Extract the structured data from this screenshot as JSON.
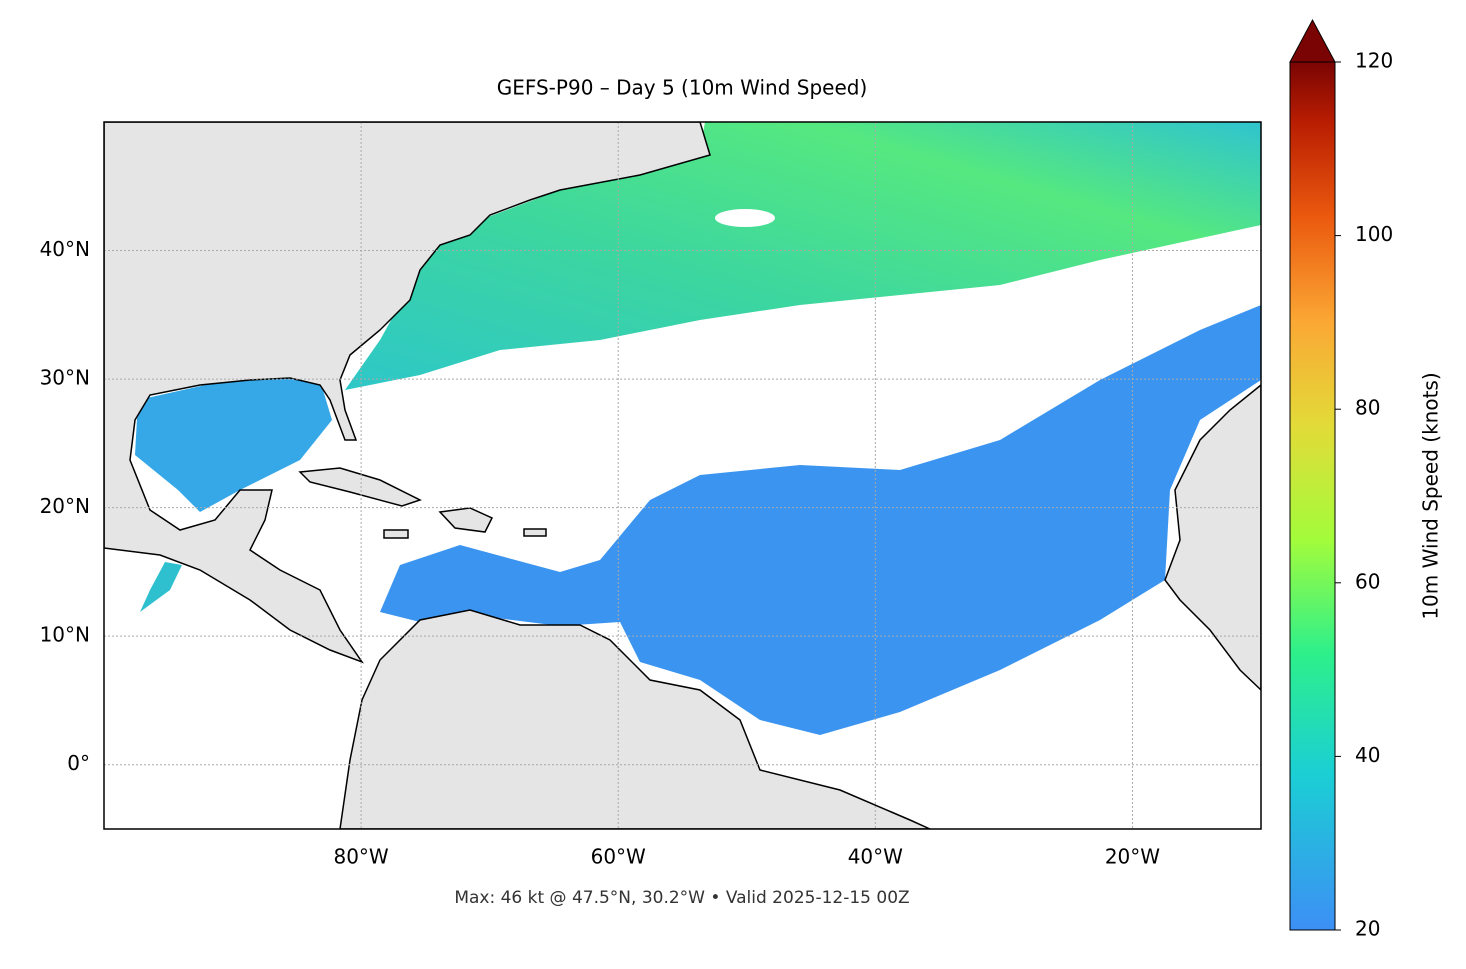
{
  "chart_data": {
    "type": "map",
    "title": "GEFS-P90 – Day 5 (10m Wind Speed)",
    "footer": "Max: 46 kt @ 47.5°N, 30.2°W • Valid 2025-12-15 00Z",
    "xlim": [
      -100,
      -10
    ],
    "ylim": [
      -5,
      50
    ],
    "xticks": [
      {
        "value": -80,
        "label": "80°W"
      },
      {
        "value": -60,
        "label": "60°W"
      },
      {
        "value": -40,
        "label": "40°W"
      },
      {
        "value": -20,
        "label": "20°W"
      }
    ],
    "yticks": [
      {
        "value": 0,
        "label": "0°"
      },
      {
        "value": 10,
        "label": "10°N"
      },
      {
        "value": 20,
        "label": "20°N"
      },
      {
        "value": 30,
        "label": "30°N"
      },
      {
        "value": 40,
        "label": "40°N"
      }
    ],
    "grid": true,
    "colorbar": {
      "label": "10m Wind Speed (knots)",
      "lim": [
        20,
        120
      ],
      "ticks": [
        20,
        40,
        60,
        80,
        100,
        120
      ],
      "extend": "max"
    }
  }
}
